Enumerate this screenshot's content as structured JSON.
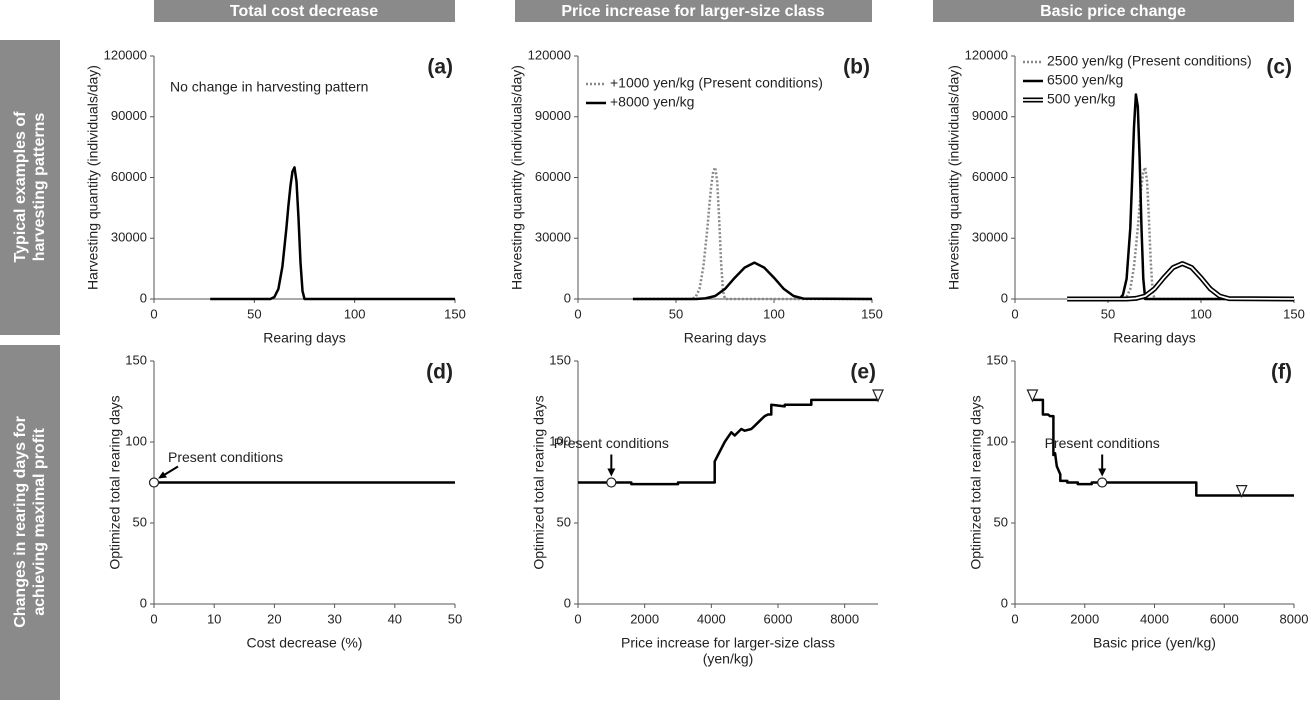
{
  "column_headers": [
    "Total cost decrease",
    "Price increase for larger-size class",
    "Basic price change"
  ],
  "row_headers": [
    [
      "Typical examples of",
      "harvesting patterns"
    ],
    [
      "Changes in rearing days for",
      "achieving maximal profit"
    ]
  ],
  "chart_data": [
    {
      "type": "line",
      "panel_label": "(a)",
      "xlabel": "Rearing days",
      "ylabel": "Harvesting quantity (individuals/day)",
      "xlim": [
        0,
        150
      ],
      "xticks": [
        0,
        50,
        100,
        150
      ],
      "ylim": [
        0,
        120000
      ],
      "yticks": [
        0,
        30000,
        60000,
        90000,
        120000
      ],
      "annotation": {
        "text": "No change in harvesting pattern"
      },
      "series": [
        {
          "color": "#000000",
          "style": "solid",
          "x": [
            28,
            58,
            60,
            62,
            64,
            66,
            67,
            68,
            69,
            70,
            71,
            72,
            73,
            74,
            75,
            150
          ],
          "values": [
            0,
            0,
            1000,
            5000,
            16000,
            35000,
            46000,
            56000,
            63000,
            65000,
            58000,
            40000,
            18000,
            4000,
            0,
            0
          ]
        }
      ]
    },
    {
      "type": "line",
      "panel_label": "(b)",
      "xlabel": "Rearing days",
      "ylabel": "Harvesting quantity (individuals/day)",
      "xlim": [
        0,
        150
      ],
      "xticks": [
        0,
        50,
        100,
        150
      ],
      "ylim": [
        0,
        120000
      ],
      "yticks": [
        0,
        30000,
        60000,
        90000,
        120000
      ],
      "legend": "upper left",
      "series": [
        {
          "name": "+1000 yen/kg (Present conditions)",
          "color": "#888888",
          "style": "dotted",
          "x": [
            28,
            58,
            60,
            62,
            64,
            66,
            67,
            68,
            69,
            70,
            71,
            72,
            73,
            74,
            75,
            150
          ],
          "values": [
            0,
            0,
            1000,
            5000,
            16000,
            35000,
            46000,
            56000,
            63000,
            65000,
            58000,
            40000,
            18000,
            4000,
            0,
            0
          ]
        },
        {
          "name": "+8000 yen/kg",
          "color": "#000000",
          "style": "solid",
          "x": [
            28,
            60,
            65,
            70,
            75,
            80,
            85,
            90,
            95,
            100,
            105,
            110,
            115,
            150
          ],
          "values": [
            0,
            0,
            300,
            1500,
            5000,
            10500,
            15500,
            18000,
            15500,
            10500,
            5000,
            1500,
            200,
            0
          ]
        }
      ]
    },
    {
      "type": "line",
      "panel_label": "(c)",
      "xlabel": "Rearing days",
      "ylabel": "Harvesting quantity (individuals/day)",
      "xlim": [
        0,
        150
      ],
      "xticks": [
        0,
        50,
        100,
        150
      ],
      "ylim": [
        0,
        120000
      ],
      "yticks": [
        0,
        30000,
        60000,
        90000,
        120000
      ],
      "legend": "upper left",
      "series": [
        {
          "name": "2500 yen/kg (Present conditions)",
          "color": "#888888",
          "style": "dotted",
          "x": [
            28,
            58,
            60,
            62,
            64,
            66,
            67,
            68,
            69,
            70,
            71,
            72,
            73,
            74,
            75,
            150
          ],
          "values": [
            0,
            0,
            1000,
            5000,
            16000,
            35000,
            46000,
            56000,
            63000,
            65000,
            58000,
            40000,
            18000,
            4000,
            0,
            0
          ]
        },
        {
          "name": "6500 yen/kg",
          "color": "#000000",
          "style": "solid",
          "x": [
            28,
            56,
            58,
            60,
            62,
            63,
            64,
            65,
            66,
            67,
            68,
            69,
            70,
            150
          ],
          "values": [
            0,
            0,
            2000,
            10000,
            35000,
            60000,
            85000,
            101000,
            95000,
            70000,
            35000,
            10000,
            0,
            0
          ]
        },
        {
          "name": "500 yen/kg",
          "color": "#000000",
          "style": "double",
          "x": [
            28,
            60,
            65,
            70,
            75,
            80,
            85,
            90,
            95,
            100,
            105,
            110,
            115,
            150
          ],
          "values": [
            0,
            0,
            300,
            1500,
            5000,
            10500,
            15500,
            17500,
            15500,
            10500,
            5000,
            1500,
            200,
            0
          ]
        }
      ]
    },
    {
      "type": "line",
      "panel_label": "(d)",
      "xlabel": "Cost decrease (%)",
      "ylabel": "Optimized total rearing days",
      "xlim": [
        0,
        50
      ],
      "xticks": [
        0,
        10,
        20,
        30,
        40,
        50
      ],
      "ylim": [
        0,
        150
      ],
      "yticks": [
        0,
        50,
        100,
        150
      ],
      "annotation": {
        "text": "Present conditions"
      },
      "highlight": {
        "x": 0,
        "y": 75
      },
      "series": [
        {
          "color": "#000000",
          "style": "solid",
          "x": [
            0,
            50
          ],
          "values": [
            75,
            75
          ]
        }
      ]
    },
    {
      "type": "line",
      "panel_label": "(e)",
      "xlabel": [
        "Price increase for larger-size class",
        "(yen/kg)"
      ],
      "ylabel": "Optimized total rearing days",
      "xlim": [
        0,
        9000
      ],
      "xticks": [
        0,
        2000,
        4000,
        6000,
        8000
      ],
      "ylim": [
        0,
        150
      ],
      "yticks": [
        0,
        50,
        100,
        150
      ],
      "annotation": {
        "text": "Present conditions"
      },
      "highlight": {
        "x": 1000,
        "y": 75
      },
      "triangles": [
        {
          "x": 9000,
          "y": 129
        }
      ],
      "series": [
        {
          "color": "#000000",
          "style": "solid",
          "x": [
            0,
            1600,
            1600,
            3000,
            3000,
            4100,
            4100,
            4200,
            4400,
            4500,
            4600,
            4700,
            4900,
            5000,
            5200,
            5300,
            5500,
            5600,
            5700,
            5800,
            5800,
            6200,
            6200,
            7000,
            7000,
            9000
          ],
          "values": [
            75,
            75,
            74,
            74,
            75,
            75,
            88,
            92,
            100,
            103,
            106,
            104,
            108,
            107,
            108,
            110,
            114,
            116,
            117,
            117,
            123,
            122,
            123,
            123,
            126,
            126
          ]
        }
      ]
    },
    {
      "type": "line",
      "panel_label": "(f)",
      "xlabel": "Basic price (yen/kg)",
      "ylabel": "Optimized total rearing days",
      "xlim": [
        0,
        8000
      ],
      "xticks": [
        0,
        2000,
        4000,
        6000,
        8000
      ],
      "ylim": [
        0,
        150
      ],
      "yticks": [
        0,
        50,
        100,
        150
      ],
      "annotation": {
        "text": "Present conditions"
      },
      "highlight": {
        "x": 2500,
        "y": 75
      },
      "triangles": [
        {
          "x": 500,
          "y": 129
        },
        {
          "x": 6500,
          "y": 70
        }
      ],
      "series": [
        {
          "color": "#000000",
          "style": "solid",
          "x": [
            500,
            800,
            800,
            950,
            1000,
            1100,
            1100,
            1150,
            1200,
            1300,
            1300,
            1500,
            1500,
            1800,
            1800,
            2200,
            2200,
            5200,
            5200,
            8000
          ],
          "values": [
            126,
            126,
            117,
            117,
            116,
            116,
            92,
            93,
            85,
            80,
            76,
            76,
            75,
            75,
            74,
            74,
            75,
            75,
            67,
            67
          ]
        }
      ]
    }
  ]
}
